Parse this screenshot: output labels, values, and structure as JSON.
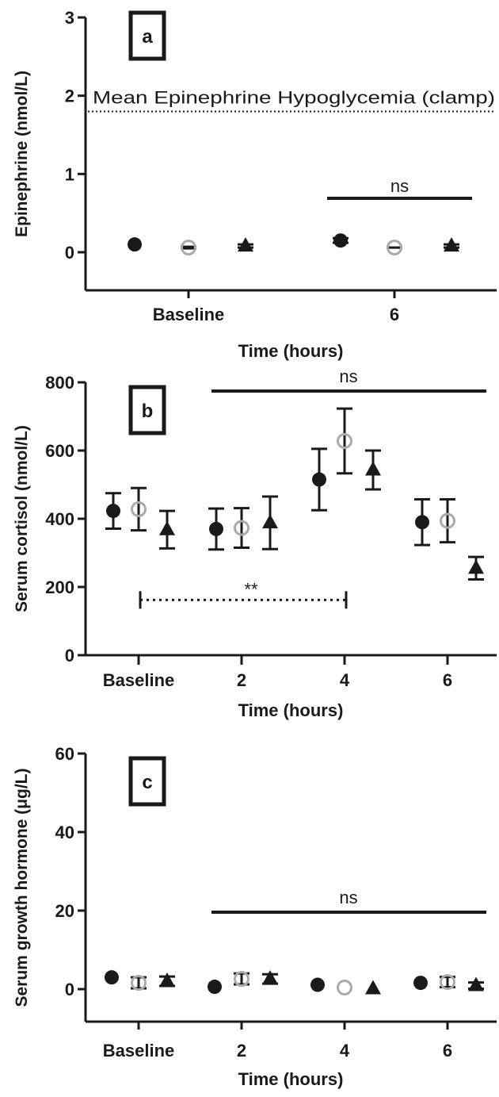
{
  "chart_data": [
    {
      "panel": "a",
      "type": "scatter",
      "ylabel": "Epinephrine (nmol/L)",
      "xlabel": "Time (hours)",
      "ylim": [
        0,
        3
      ],
      "yticks": [
        "0",
        "1",
        "2",
        "3"
      ],
      "categories": [
        "Baseline",
        "6"
      ],
      "reference_line": {
        "label": "Mean Epinephrine Hypoglycemia (clamp)",
        "value": 1.9
      },
      "series": [
        {
          "marker": "filled-circle",
          "values": [
            0.1,
            0.15
          ],
          "err": [
            0.0,
            0.03
          ]
        },
        {
          "marker": "open-circle",
          "values": [
            0.06,
            0.06
          ],
          "err": [
            0.01,
            0.0
          ]
        },
        {
          "marker": "filled-triangle",
          "values": [
            0.08,
            0.08
          ],
          "err": [
            0.02,
            0.02
          ]
        }
      ],
      "annotations": [
        {
          "text": "ns",
          "from": 1,
          "to": 1
        }
      ]
    },
    {
      "panel": "b",
      "type": "scatter",
      "ylabel": "Serum cortisol (nmol/L)",
      "xlabel": "Time (hours)",
      "ylim": [
        0,
        800
      ],
      "yticks": [
        "0",
        "200",
        "400",
        "600",
        "800"
      ],
      "categories": [
        "Baseline",
        "2",
        "4",
        "6"
      ],
      "series": [
        {
          "marker": "filled-circle",
          "values": [
            423,
            370,
            515,
            390
          ],
          "err": [
            52,
            60,
            90,
            67
          ]
        },
        {
          "marker": "open-circle",
          "values": [
            428,
            373,
            628,
            394
          ],
          "err": [
            62,
            58,
            95,
            63
          ]
        },
        {
          "marker": "filled-triangle",
          "values": [
            368,
            388,
            543,
            255
          ],
          "err": [
            55,
            77,
            57,
            33
          ]
        }
      ],
      "annotations": [
        {
          "text": "ns",
          "from": 1,
          "to": 3
        },
        {
          "text": "**",
          "from": 0,
          "to": 2,
          "dotted": true
        }
      ]
    },
    {
      "panel": "c",
      "type": "scatter",
      "ylabel": "Serum growth hormone (μg/L)",
      "xlabel": "Time (hours)",
      "ylim": [
        0,
        60
      ],
      "yticks": [
        "0",
        "20",
        "40",
        "60"
      ],
      "categories": [
        "Baseline",
        "2",
        "4",
        "6"
      ],
      "series": [
        {
          "marker": "filled-circle",
          "values": [
            3.0,
            0.6,
            1.1,
            1.6
          ],
          "err": [
            0,
            0,
            0,
            0
          ]
        },
        {
          "marker": "open-circle",
          "values": [
            1.6,
            2.6,
            0.4,
            1.8
          ],
          "err": [
            1.4,
            1.4,
            0,
            1.3
          ]
        },
        {
          "marker": "filled-triangle",
          "values": [
            2.0,
            2.6,
            0.1,
            0.9
          ],
          "err": [
            1.2,
            1.2,
            0,
            0.8
          ]
        }
      ],
      "annotations": [
        {
          "text": "ns",
          "from": 1,
          "to": 3
        }
      ]
    }
  ],
  "style": {
    "ink": "#1a1a1a",
    "open_marker": "#aaaaaa"
  }
}
